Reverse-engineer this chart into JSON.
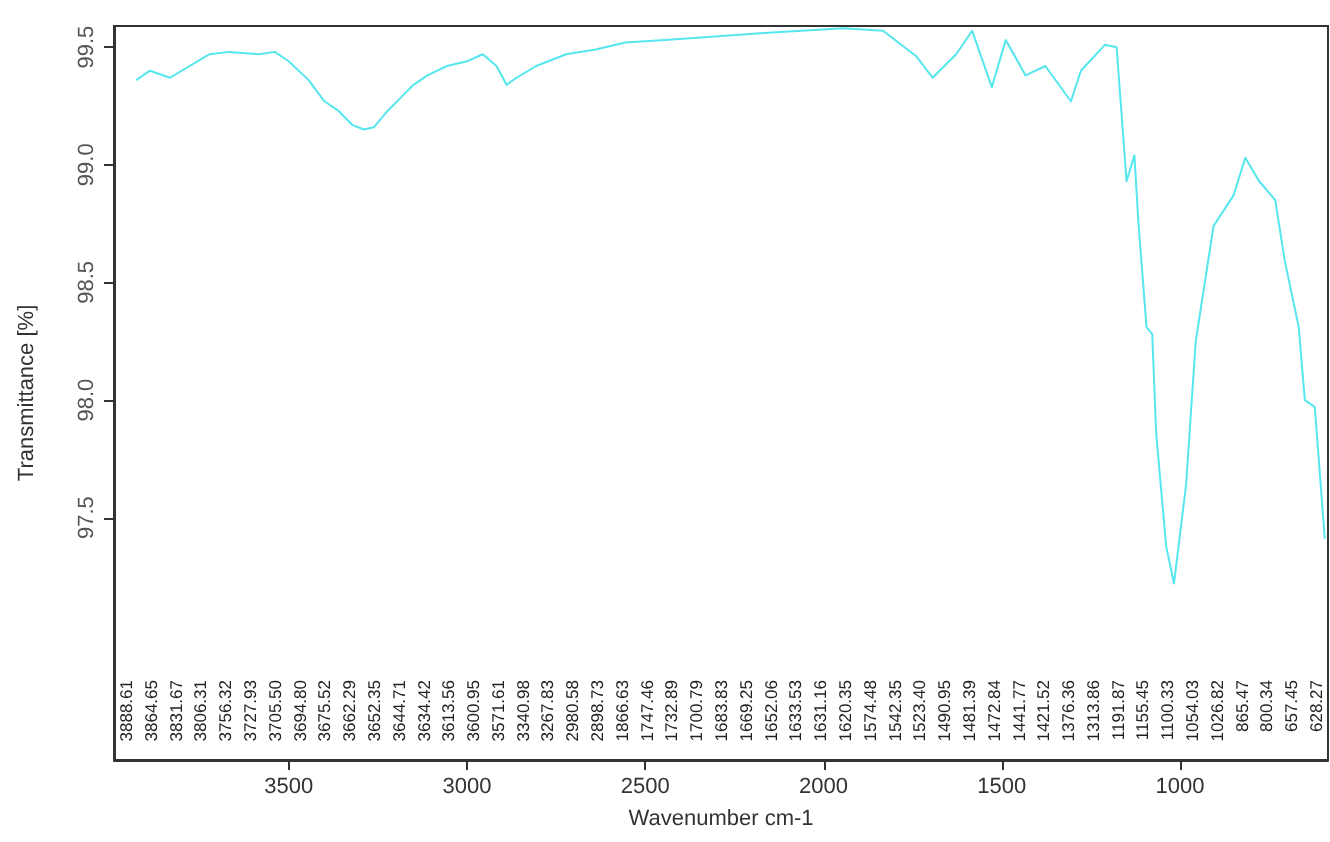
{
  "chart_data": {
    "type": "line",
    "xlabel": "Wavenumber cm-1",
    "ylabel": "Transmittance [%]",
    "xlim": [
      3990,
      585
    ],
    "xticks": [
      3500,
      3000,
      2500,
      2000,
      1500,
      1000
    ],
    "ylim": [
      96.47,
      99.59
    ],
    "yticks": [
      97.5,
      {
        "value": 98,
        "label": "98.0"
      },
      98.5,
      {
        "value": 99,
        "label": "99.0"
      },
      99.5
    ],
    "grid": false,
    "marker": "none",
    "line_style": "solid",
    "series": [
      {
        "color": "#55e6ee",
        "x": [
          3928,
          3889,
          3833,
          3722,
          3667,
          3583,
          3539,
          3500,
          3444,
          3400,
          3361,
          3322,
          3289,
          3261,
          3222,
          3183,
          3150,
          3111,
          3056,
          3000,
          2956,
          2917,
          2889,
          2861,
          2806,
          2722,
          2639,
          2556,
          2444,
          2167,
          1944,
          1833,
          1739,
          1694,
          1628,
          1583,
          1528,
          1489,
          1433,
          1378,
          1306,
          1278,
          1211,
          1178,
          1150,
          1128,
          1117,
          1094,
          1078,
          1067,
          1039,
          1017,
          983,
          956,
          906,
          850,
          817,
          778,
          733,
          706,
          667,
          650,
          622,
          594
        ],
        "values": [
          99.36,
          99.4,
          99.37,
          99.47,
          99.48,
          99.47,
          99.48,
          99.44,
          99.36,
          99.27,
          99.23,
          99.17,
          99.15,
          99.16,
          99.23,
          99.29,
          99.34,
          99.38,
          99.42,
          99.44,
          99.47,
          99.42,
          99.34,
          99.37,
          99.42,
          99.47,
          99.49,
          99.52,
          99.53,
          99.56,
          99.58,
          99.57,
          99.46,
          99.37,
          99.47,
          99.57,
          99.33,
          99.53,
          99.38,
          99.42,
          99.27,
          99.4,
          99.51,
          99.5,
          98.93,
          99.04,
          98.76,
          98.31,
          98.28,
          97.86,
          97.38,
          97.22,
          97.64,
          98.25,
          98.74,
          98.87,
          99.03,
          98.93,
          98.85,
          98.59,
          98.31,
          98.0,
          97.97,
          97.41
        ]
      }
    ],
    "annotations": [
      "3888.61",
      "3864.65",
      "3831.67",
      "3806.31",
      "3756.32",
      "3727.93",
      "3705.50",
      "3694.80",
      "3675.52",
      "3662.29",
      "3652.35",
      "3644.71",
      "3634.42",
      "3613.56",
      "3600.95",
      "3571.61",
      "3340.98",
      "3267.83",
      "2980.58",
      "2898.73",
      "1866.63",
      "1747.46",
      "1732.89",
      "1700.79",
      "1683.83",
      "1669.25",
      "1652.06",
      "1633.53",
      "1631.16",
      "1620.35",
      "1574.48",
      "1542.35",
      "1523.40",
      "1490.95",
      "1481.39",
      "1472.84",
      "1441.77",
      "1421.52",
      "1376.36",
      "1313.86",
      "1191.87",
      "1155.45",
      "1100.33",
      "1054.03",
      "1026.82",
      "865.47",
      "800.34",
      "657.45",
      "628.27"
    ]
  }
}
